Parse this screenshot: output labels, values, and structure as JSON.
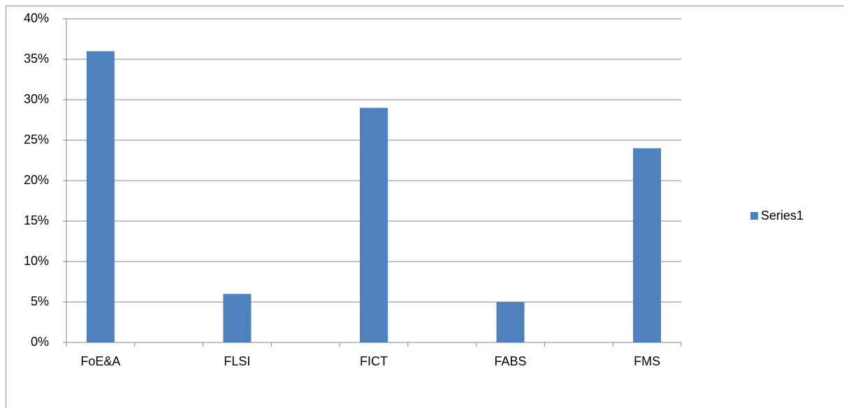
{
  "chart_data": {
    "type": "bar",
    "categories": [
      "FoE&A",
      null,
      "FLSI",
      null,
      "FICT",
      null,
      "FABS",
      null,
      "FMS"
    ],
    "series": [
      {
        "name": "Series1",
        "color": "#4f81bd",
        "values": [
          36,
          null,
          6,
          null,
          29,
          null,
          5,
          null,
          24
        ]
      }
    ],
    "ylim": [
      0,
      40
    ],
    "yticks": [
      {
        "value": 0,
        "label": "0%"
      },
      {
        "value": 5,
        "label": "5%"
      },
      {
        "value": 10,
        "label": "10%"
      },
      {
        "value": 15,
        "label": "15%"
      },
      {
        "value": 20,
        "label": "20%"
      },
      {
        "value": 25,
        "label": "25%"
      },
      {
        "value": 30,
        "label": "30%"
      },
      {
        "value": 35,
        "label": "35%"
      },
      {
        "value": 40,
        "label": "40%"
      }
    ],
    "grid": true,
    "legend": "right"
  }
}
